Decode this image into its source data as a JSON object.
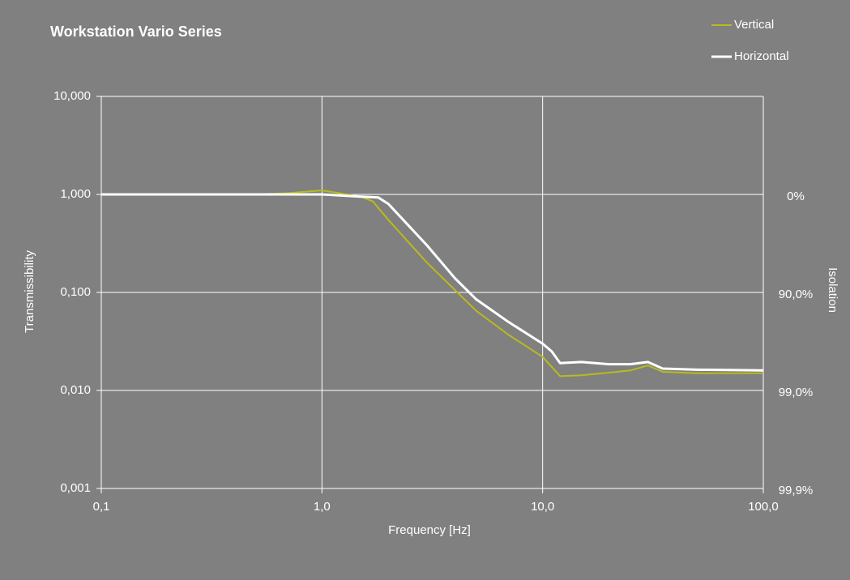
{
  "chart_data": {
    "type": "line",
    "title": "Workstation Vario Series",
    "x_label": "Frequency  [Hz]",
    "y_label": "Transmissibility",
    "y2_label": "Isolation",
    "xscale": "log",
    "yscale": "log",
    "y2scale": "complement-log",
    "xlim": [
      0.1,
      100
    ],
    "ylim": [
      0.001,
      10
    ],
    "y2lim": [
      99.9,
      -900
    ],
    "xticks": [
      {
        "value": 0.1,
        "label": "0,1"
      },
      {
        "value": 1,
        "label": "1,0"
      },
      {
        "value": 10,
        "label": "10,0"
      },
      {
        "value": 100,
        "label": "100,0"
      }
    ],
    "yticks": [
      {
        "value": 0.001,
        "label": "0,001"
      },
      {
        "value": 0.01,
        "label": "0,010"
      },
      {
        "value": 0.1,
        "label": "0,100"
      },
      {
        "value": 1,
        "label": "1,000"
      },
      {
        "value": 10,
        "label": "10,000"
      }
    ],
    "y2ticks": [
      {
        "value": 0,
        "label": "0%"
      },
      {
        "value": 90,
        "label": "90,0%"
      },
      {
        "value": 99,
        "label": "99,0%"
      },
      {
        "value": 99.9,
        "label": "99,9%"
      }
    ],
    "grid": true,
    "legend": "top-right",
    "series": [
      {
        "name": "Vertical",
        "color": "#b8bb1c",
        "x": [
          0.1,
          0.5,
          0.7,
          1.0,
          1.5,
          1.7,
          2,
          3,
          5,
          7,
          10,
          12,
          15,
          20,
          25,
          30,
          35,
          50,
          100
        ],
        "values": [
          1.0,
          1.0,
          1.03,
          1.1,
          0.95,
          0.85,
          0.55,
          0.2,
          0.065,
          0.037,
          0.022,
          0.014,
          0.0143,
          0.0152,
          0.016,
          0.018,
          0.0155,
          0.015,
          0.015
        ]
      },
      {
        "name": "Horizontal",
        "color": "#ffffff",
        "x": [
          0.1,
          1,
          1.5,
          1.8,
          2,
          3,
          4,
          5,
          7,
          10,
          11,
          12,
          15,
          20,
          25,
          30,
          35,
          50,
          100
        ],
        "values": [
          1.0,
          1.0,
          0.95,
          0.93,
          0.8,
          0.3,
          0.14,
          0.085,
          0.05,
          0.03,
          0.025,
          0.019,
          0.0195,
          0.0185,
          0.0185,
          0.0195,
          0.0167,
          0.0163,
          0.016
        ]
      }
    ]
  }
}
